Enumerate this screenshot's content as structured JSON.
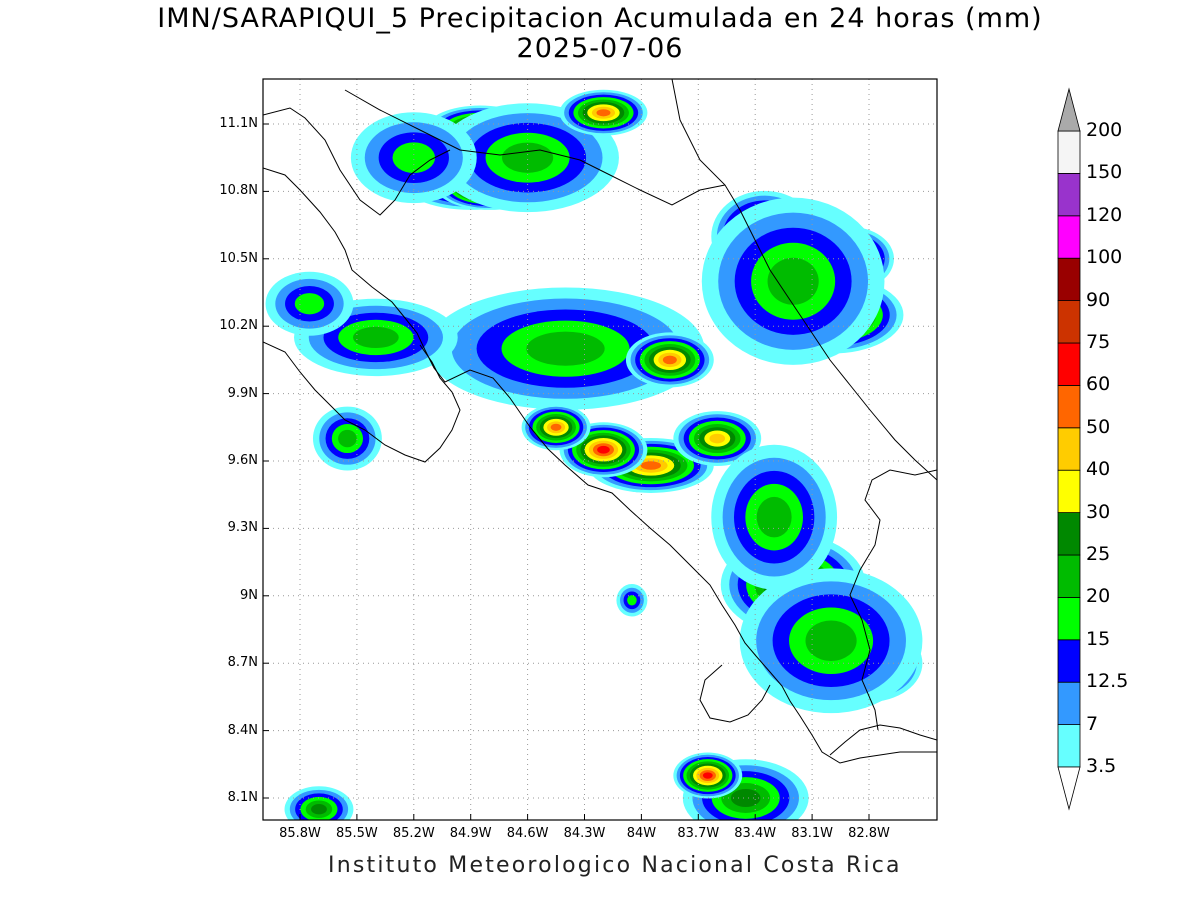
{
  "header": {
    "title": "IMN/SARAPIQUI_5 Precipitacion Acumulada en 24 horas (mm)",
    "date": "2025-07-06"
  },
  "footer": {
    "credit": "Instituto Meteorologico Nacional Costa Rica"
  },
  "axes": {
    "lat_labels": [
      "11.1N",
      "10.8N",
      "10.5N",
      "10.2N",
      "9.9N",
      "9.6N",
      "9.3N",
      "9N",
      "8.7N",
      "8.4N",
      "8.1N"
    ],
    "lon_labels": [
      "85.8W",
      "85.5W",
      "85.2W",
      "84.9W",
      "84.6W",
      "84.3W",
      "84W",
      "83.7W",
      "83.4W",
      "83.1W",
      "82.8W"
    ],
    "lat_values": [
      11.1,
      10.8,
      10.5,
      10.2,
      9.9,
      9.6,
      9.3,
      9.0,
      8.7,
      8.4,
      8.1
    ],
    "lon_values": [
      -85.8,
      -85.5,
      -85.2,
      -84.9,
      -84.6,
      -84.3,
      -84.0,
      -83.7,
      -83.4,
      -83.1,
      -82.8
    ],
    "lat_range": [
      8.0,
      11.3
    ],
    "lon_range": [
      -86.0,
      -82.5
    ],
    "grid": true
  },
  "colorbar": {
    "labels": [
      "3.5",
      "7",
      "12.5",
      "15",
      "20",
      "25",
      "30",
      "40",
      "50",
      "60",
      "75",
      "90",
      "100",
      "120",
      "150",
      "200"
    ],
    "colors": [
      "#66ffff",
      "#3399ff",
      "#0000ff",
      "#00ff00",
      "#00bb00",
      "#008800",
      "#ffff00",
      "#ffcc00",
      "#ff6600",
      "#ff0000",
      "#cc3300",
      "#990000",
      "#ff00ff",
      "#9933cc",
      "#f5f5f5",
      "#aaaaaa"
    ]
  },
  "precip_blobs": [
    {
      "lon": -84.9,
      "lat": 10.86,
      "rx": 0.35,
      "ry": 0.12,
      "level": 9
    },
    {
      "lon": -84.8,
      "lat": 10.82,
      "rx": 0.25,
      "ry": 0.08,
      "level": 11
    },
    {
      "lon": -84.85,
      "lat": 11.08,
      "rx": 0.25,
      "ry": 0.08,
      "level": 8
    },
    {
      "lon": -84.6,
      "lat": 10.95,
      "rx": 0.45,
      "ry": 0.22,
      "level": 4
    },
    {
      "lon": -84.2,
      "lat": 11.15,
      "rx": 0.2,
      "ry": 0.08,
      "level": 8
    },
    {
      "lon": -85.2,
      "lat": 10.95,
      "rx": 0.3,
      "ry": 0.18,
      "level": 3
    },
    {
      "lon": -83.35,
      "lat": 10.6,
      "rx": 0.25,
      "ry": 0.18,
      "level": 8
    },
    {
      "lon": -83.0,
      "lat": 10.25,
      "rx": 0.35,
      "ry": 0.15,
      "level": 9
    },
    {
      "lon": -83.05,
      "lat": 10.23,
      "rx": 0.12,
      "ry": 0.05,
      "level": 13
    },
    {
      "lon": -82.9,
      "lat": 10.5,
      "rx": 0.2,
      "ry": 0.12,
      "level": 8
    },
    {
      "lon": -83.2,
      "lat": 10.4,
      "rx": 0.45,
      "ry": 0.35,
      "level": 4
    },
    {
      "lon": -84.6,
      "lat": 10.15,
      "rx": 0.3,
      "ry": 0.15,
      "level": 9
    },
    {
      "lon": -84.4,
      "lat": 10.1,
      "rx": 0.7,
      "ry": 0.25,
      "level": 4
    },
    {
      "lon": -83.85,
      "lat": 10.05,
      "rx": 0.2,
      "ry": 0.1,
      "level": 8
    },
    {
      "lon": -85.25,
      "lat": 10.12,
      "rx": 0.15,
      "ry": 0.08,
      "level": 8
    },
    {
      "lon": -85.4,
      "lat": 10.15,
      "rx": 0.4,
      "ry": 0.15,
      "level": 4
    },
    {
      "lon": -85.75,
      "lat": 10.3,
      "rx": 0.2,
      "ry": 0.12,
      "level": 3
    },
    {
      "lon": -83.95,
      "lat": 9.58,
      "rx": 0.3,
      "ry": 0.1,
      "level": 8
    },
    {
      "lon": -84.2,
      "lat": 9.65,
      "rx": 0.2,
      "ry": 0.1,
      "level": 9
    },
    {
      "lon": -84.45,
      "lat": 9.75,
      "rx": 0.15,
      "ry": 0.08,
      "level": 8
    },
    {
      "lon": -83.6,
      "lat": 9.7,
      "rx": 0.2,
      "ry": 0.1,
      "level": 7
    },
    {
      "lon": -83.2,
      "lat": 9.05,
      "rx": 0.35,
      "ry": 0.2,
      "level": 7
    },
    {
      "lon": -83.1,
      "lat": 8.78,
      "rx": 0.25,
      "ry": 0.08,
      "level": 9
    },
    {
      "lon": -82.8,
      "lat": 8.7,
      "rx": 0.25,
      "ry": 0.15,
      "level": 8
    },
    {
      "lon": -82.9,
      "lat": 8.6,
      "rx": 0.15,
      "ry": 0.08,
      "level": 9
    },
    {
      "lon": -83.0,
      "lat": 8.8,
      "rx": 0.45,
      "ry": 0.3,
      "level": 4
    },
    {
      "lon": -83.3,
      "lat": 9.35,
      "rx": 0.3,
      "ry": 0.3,
      "level": 4
    },
    {
      "lon": -83.4,
      "lat": 8.05,
      "rx": 0.12,
      "ry": 0.06,
      "level": 12
    },
    {
      "lon": -83.45,
      "lat": 8.1,
      "rx": 0.3,
      "ry": 0.15,
      "level": 5
    },
    {
      "lon": -83.65,
      "lat": 8.2,
      "rx": 0.15,
      "ry": 0.08,
      "level": 9
    },
    {
      "lon": -85.7,
      "lat": 8.05,
      "rx": 0.15,
      "ry": 0.08,
      "level": 5
    },
    {
      "lon": -85.55,
      "lat": 9.7,
      "rx": 0.15,
      "ry": 0.12,
      "level": 4
    },
    {
      "lon": -84.05,
      "lat": 8.98,
      "rx": 0.05,
      "ry": 0.05,
      "level": 3
    }
  ]
}
